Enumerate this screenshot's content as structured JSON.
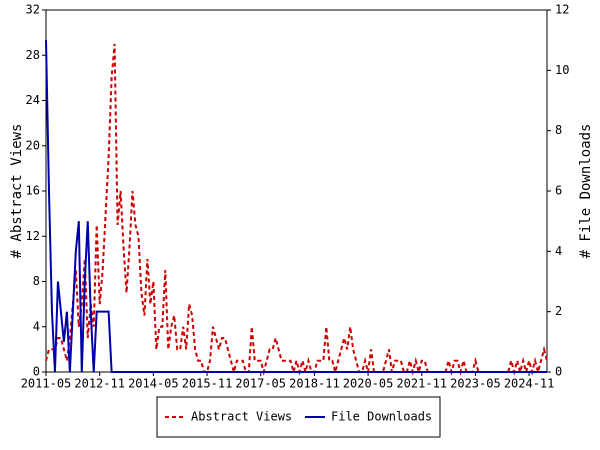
{
  "chart_data": {
    "type": "line",
    "ylabel": "# Abstract Views",
    "y2label": "# File Downloads",
    "ylim": [
      0,
      32
    ],
    "yticks": [
      0,
      4,
      8,
      12,
      16,
      20,
      24,
      28,
      32
    ],
    "y2lim": [
      0,
      12
    ],
    "y2ticks": [
      0,
      2,
      4,
      6,
      8,
      10,
      12
    ],
    "categories": [
      "2011-05",
      null,
      null,
      null,
      null,
      null,
      null,
      null,
      null,
      null,
      null,
      null,
      null,
      null,
      null,
      null,
      null,
      null,
      "2012-11",
      null,
      null,
      null,
      null,
      null,
      null,
      null,
      null,
      null,
      null,
      null,
      null,
      null,
      null,
      null,
      null,
      null,
      "2014-05",
      null,
      null,
      null,
      null,
      null,
      null,
      null,
      null,
      null,
      null,
      null,
      null,
      null,
      null,
      null,
      null,
      null,
      "2015-11",
      null,
      null,
      null,
      null,
      null,
      null,
      null,
      null,
      null,
      null,
      null,
      null,
      null,
      null,
      null,
      null,
      null,
      "2017-05",
      null,
      null,
      null,
      null,
      null,
      null,
      null,
      null,
      null,
      null,
      null,
      null,
      null,
      null,
      null,
      null,
      null,
      "2018-11",
      null,
      null,
      null,
      null,
      null,
      null,
      null,
      null,
      null,
      null,
      null,
      null,
      null,
      null,
      null,
      null,
      null,
      "2020-05",
      null,
      null,
      null,
      null,
      null,
      null,
      null,
      null,
      null,
      null,
      null,
      null,
      null,
      null,
      null,
      null,
      null,
      "2021-11",
      null,
      null,
      null,
      null,
      null,
      null,
      null,
      null,
      null,
      null,
      null,
      null,
      null,
      null,
      null,
      null,
      null,
      "2023-05",
      null,
      null,
      null,
      null,
      null,
      null,
      null,
      null,
      null,
      null,
      null,
      null,
      null,
      null,
      null,
      null,
      null,
      "2024-11",
      null,
      null,
      null,
      null,
      null,
      null
    ],
    "series": [
      {
        "name": "Abstract Views",
        "color": "#cc0000",
        "dash": true,
        "values": [
          1,
          2,
          2,
          2,
          3,
          3,
          2,
          1,
          3,
          6,
          9,
          4,
          6,
          10,
          3,
          6,
          4,
          13,
          6,
          9,
          14,
          19,
          26,
          29,
          13,
          16,
          11,
          7,
          11,
          16,
          13,
          12,
          7,
          5,
          10,
          6,
          8,
          2,
          4,
          4,
          9,
          2,
          4,
          5,
          2,
          2,
          4,
          2,
          6,
          5,
          2,
          1,
          1,
          0,
          0,
          1,
          4,
          3,
          2,
          3,
          3,
          2,
          1,
          0,
          1,
          1,
          1,
          0,
          0,
          4,
          1,
          1,
          1,
          0,
          1,
          2,
          2,
          3,
          2,
          1,
          1,
          1,
          1,
          0,
          1,
          0,
          1,
          0,
          1,
          0,
          0,
          1,
          1,
          1,
          4,
          1,
          1,
          0,
          1,
          2,
          3,
          2,
          4,
          2,
          1,
          0,
          0,
          1,
          0,
          2,
          0,
          0,
          0,
          0,
          1,
          2,
          0,
          1,
          1,
          1,
          0,
          0,
          1,
          0,
          1,
          0,
          1,
          1,
          0,
          0,
          0,
          0,
          0,
          0,
          0,
          1,
          0,
          1,
          1,
          0,
          1,
          0,
          0,
          0,
          1,
          0,
          0,
          0,
          0,
          0,
          0,
          0,
          0,
          0,
          0,
          0,
          1,
          0,
          1,
          0,
          1,
          0,
          1,
          0,
          1,
          0,
          1,
          2,
          1
        ]
      },
      {
        "name": "File Downloads",
        "color": "#0000aa",
        "dash": false,
        "axis": "y2",
        "values": [
          11,
          6,
          2,
          0,
          3,
          2,
          1,
          2,
          0,
          2,
          4,
          5,
          0,
          3,
          5,
          2,
          0,
          2,
          2,
          2,
          2,
          2,
          0,
          0,
          0,
          0,
          0,
          0,
          0,
          0,
          0,
          0,
          0,
          0,
          0,
          0,
          0,
          0,
          0,
          0,
          0,
          0,
          0,
          0,
          0,
          0,
          0,
          0,
          0,
          0,
          0,
          0,
          0,
          0,
          0,
          0,
          0,
          0,
          0,
          0,
          0,
          0,
          0,
          0,
          0,
          0,
          0,
          0,
          0,
          0,
          0,
          0,
          0,
          0,
          0,
          0,
          0,
          0,
          0,
          0,
          0,
          0,
          0,
          0,
          0,
          0,
          0,
          0,
          0,
          0,
          0,
          0,
          0,
          0,
          0,
          0,
          0,
          0,
          0,
          0,
          0,
          0,
          0,
          0,
          0,
          0,
          0,
          0,
          0,
          0,
          0,
          0,
          0,
          0,
          0,
          0,
          0,
          0,
          0,
          0,
          0,
          0,
          0,
          0,
          0,
          0,
          0,
          0,
          0,
          0,
          0,
          0,
          0,
          0,
          0,
          0,
          0,
          0,
          0,
          0,
          0,
          0,
          0,
          0,
          0,
          0,
          0,
          0,
          0,
          0,
          0,
          0,
          0,
          0,
          0,
          0,
          0,
          0,
          0,
          0,
          0,
          0,
          0,
          0,
          0,
          0,
          0,
          0,
          0
        ]
      }
    ]
  }
}
